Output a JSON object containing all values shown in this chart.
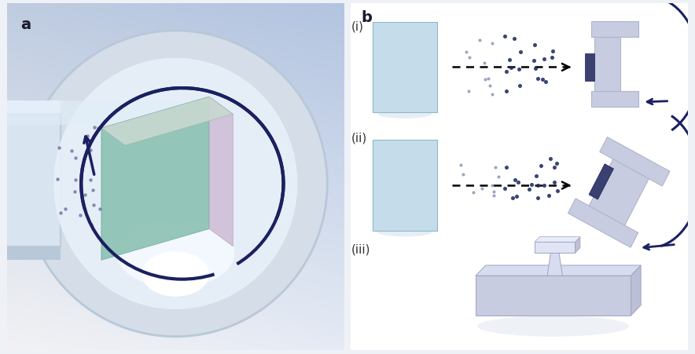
{
  "bg_color": "#eef1f6",
  "panel_a_bg_top": "#c8d4e8",
  "panel_a_bg_bot": "#d8e8f4",
  "label_a": "a",
  "label_b": "b",
  "label_i": "(i)",
  "label_ii": "(ii)",
  "label_iii": "(iii)",
  "light_blue_src": "#c5dcea",
  "lavender": "#c8cce0",
  "lavender_mid": "#bbbfd8",
  "lavender_dark": "#9fa4c0",
  "lavender_side": "#b0b4cc",
  "dark_navy": "#1a2060",
  "mask_color": "#3a4070",
  "dot_color_dark": "#1a2a60",
  "dot_color_light": "#6070a0",
  "arrow_color": "#111111",
  "teal_face": "#88c0b0",
  "teal_face2": "#70b0a0",
  "pink_side": "#d8c8dc",
  "tube_bg": "#c8d8e8",
  "tube_rim": "#b8c8d8",
  "glow_color": "#e8f0f8",
  "white": "#ffffff"
}
